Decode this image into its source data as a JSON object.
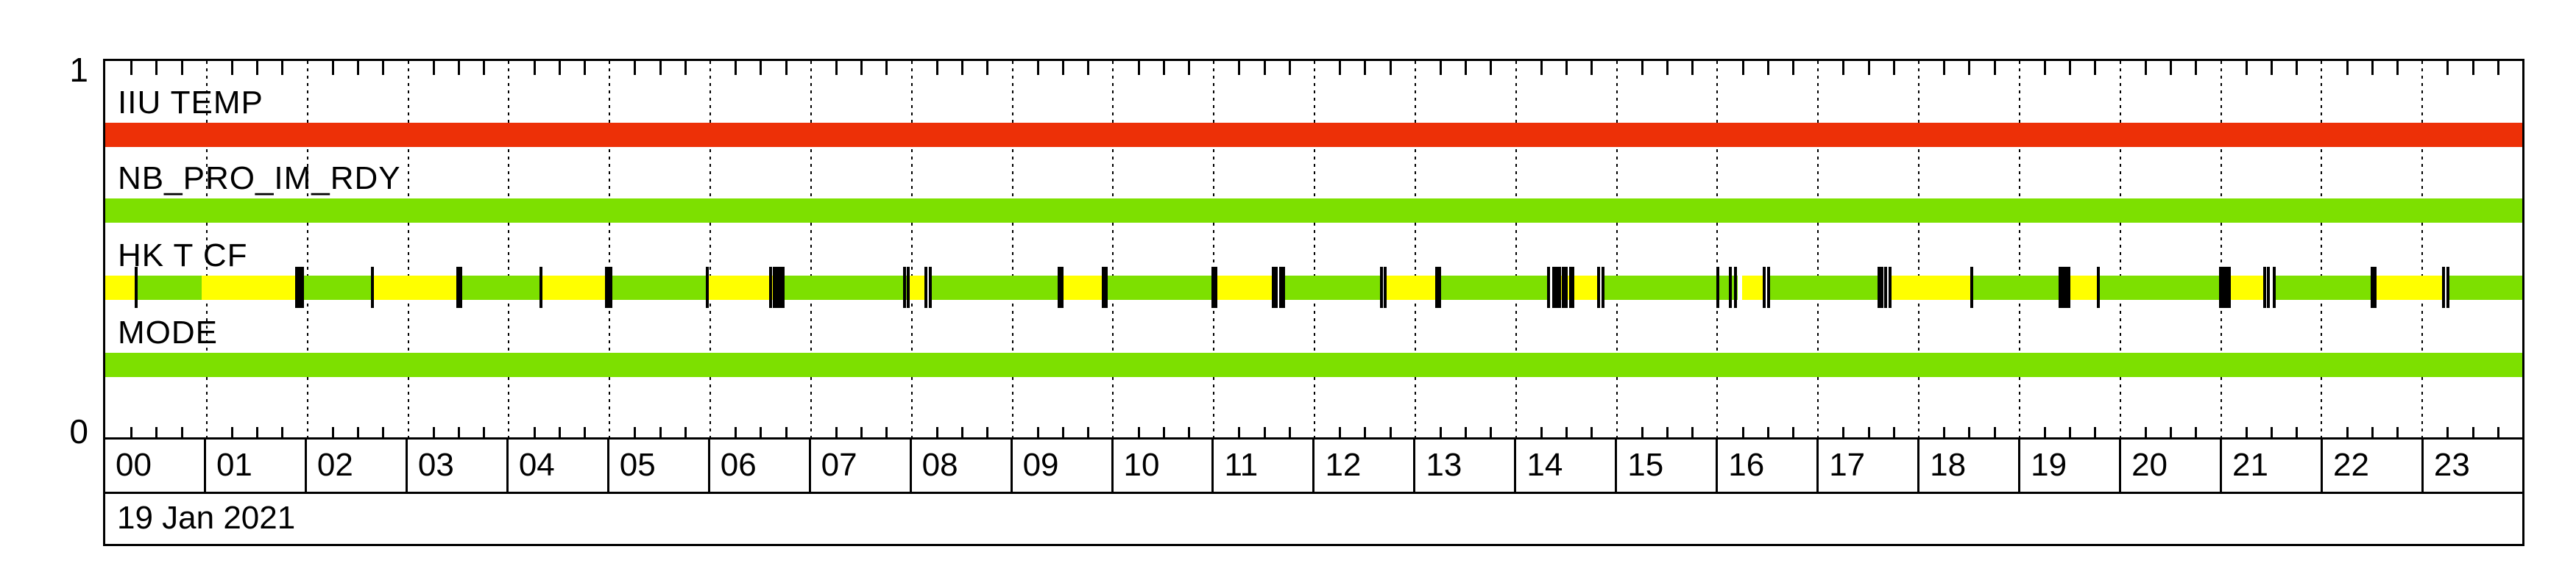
{
  "colors": {
    "red": "#ed3007",
    "green": "#7de000",
    "yellow": "#ffff00",
    "axis": "#000000",
    "background": "#ffffff"
  },
  "y_axis": {
    "top_label": "1",
    "bottom_label": "0"
  },
  "x_axis": {
    "date": "19 Jan 2021",
    "hours": [
      "00",
      "01",
      "02",
      "03",
      "04",
      "05",
      "06",
      "07",
      "08",
      "09",
      "10",
      "11",
      "12",
      "13",
      "14",
      "15",
      "16",
      "17",
      "18",
      "19",
      "20",
      "21",
      "22",
      "23"
    ],
    "minor_tick_minutes": 15,
    "hour_gridline_style": "dotted"
  },
  "chart_data": {
    "type": "status-timeline",
    "title": "",
    "date": "19 Jan 2021",
    "x_range_hours": [
      0,
      24
    ],
    "y_range": [
      0,
      1
    ],
    "channels": [
      {
        "name": "IIU TEMP",
        "segments": [
          {
            "state": "red",
            "start": 0,
            "end": 24
          }
        ],
        "event_ticks_hours": []
      },
      {
        "name": "NB_PRO_IM_RDY",
        "segments": [
          {
            "state": "green",
            "start": 0,
            "end": 24
          }
        ],
        "event_ticks_hours": []
      },
      {
        "name": "HK T CF",
        "segments": [
          {
            "state": "yellow",
            "start": 0.0,
            "end": 0.31
          },
          {
            "state": "green",
            "start": 0.31,
            "end": 0.96
          },
          {
            "state": "yellow",
            "start": 0.96,
            "end": 1.93
          },
          {
            "state": "green",
            "start": 1.96,
            "end": 2.65
          },
          {
            "state": "yellow",
            "start": 2.65,
            "end": 3.51
          },
          {
            "state": "green",
            "start": 3.54,
            "end": 4.33
          },
          {
            "state": "yellow",
            "start": 4.33,
            "end": 4.99
          },
          {
            "state": "green",
            "start": 5.02,
            "end": 5.98
          },
          {
            "state": "yellow",
            "start": 5.98,
            "end": 6.7
          },
          {
            "state": "green",
            "start": 6.73,
            "end": 7.97
          },
          {
            "state": "yellow",
            "start": 7.97,
            "end": 8.15
          },
          {
            "state": "green",
            "start": 8.19,
            "end": 9.48
          },
          {
            "state": "yellow",
            "start": 9.51,
            "end": 9.91
          },
          {
            "state": "green",
            "start": 9.94,
            "end": 11.0
          },
          {
            "state": "yellow",
            "start": 11.03,
            "end": 11.61
          },
          {
            "state": "green",
            "start": 11.66,
            "end": 12.67
          },
          {
            "state": "yellow",
            "start": 12.71,
            "end": 13.22
          },
          {
            "state": "green",
            "start": 13.24,
            "end": 14.33
          },
          {
            "state": "yellow",
            "start": 14.4,
            "end": 14.83
          },
          {
            "state": "green",
            "start": 14.87,
            "end": 16.21
          },
          {
            "state": "yellow",
            "start": 16.25,
            "end": 16.47
          },
          {
            "state": "green",
            "start": 16.53,
            "end": 17.62
          },
          {
            "state": "yellow",
            "start": 17.73,
            "end": 18.52
          },
          {
            "state": "green",
            "start": 18.55,
            "end": 19.41
          },
          {
            "state": "yellow",
            "start": 19.49,
            "end": 19.78
          },
          {
            "state": "green",
            "start": 19.8,
            "end": 21.0
          },
          {
            "state": "yellow",
            "start": 21.08,
            "end": 21.45
          },
          {
            "state": "green",
            "start": 21.55,
            "end": 22.51
          },
          {
            "state": "yellow",
            "start": 22.54,
            "end": 23.23
          },
          {
            "state": "green",
            "start": 23.26,
            "end": 24.0
          }
        ],
        "event_ticks_hours": [
          0.31,
          1.9,
          1.92,
          1.94,
          1.96,
          2.65,
          3.5,
          3.53,
          4.33,
          4.98,
          5.0,
          5.02,
          5.98,
          6.61,
          6.64,
          6.67,
          6.7,
          6.73,
          7.94,
          7.97,
          8.15,
          8.19,
          9.47,
          9.5,
          9.91,
          9.94,
          11.0,
          11.03,
          11.6,
          11.63,
          11.67,
          11.7,
          12.67,
          12.71,
          13.22,
          13.25,
          14.33,
          14.38,
          14.41,
          14.44,
          14.48,
          14.51,
          14.55,
          14.57,
          14.83,
          14.87,
          16.01,
          16.14,
          16.19,
          16.47,
          16.52,
          17.61,
          17.64,
          17.68,
          17.72,
          18.53,
          19.41,
          19.44,
          19.47,
          19.5,
          19.79,
          21.0,
          21.03,
          21.06,
          21.09,
          21.44,
          21.48,
          21.54,
          22.51,
          22.54,
          23.22,
          23.26
        ]
      },
      {
        "name": "MODE",
        "segments": [
          {
            "state": "green",
            "start": 0,
            "end": 24
          }
        ],
        "event_ticks_hours": []
      }
    ]
  }
}
